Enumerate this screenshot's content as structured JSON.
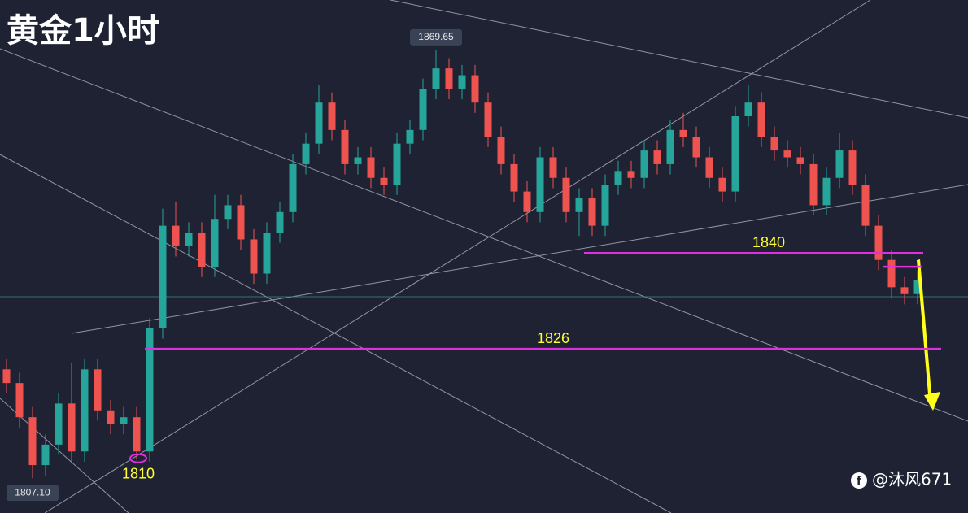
{
  "chart_data": {
    "type": "candlestick",
    "title": "黄金1小时",
    "open": [
      1823,
      1821,
      1816,
      1809,
      1812,
      1818,
      1811,
      1823,
      1817,
      1815,
      1816,
      1811,
      1829,
      1844,
      1841,
      1843,
      1838,
      1845,
      1847,
      1842,
      1837,
      1843,
      1846,
      1853,
      1856,
      1862,
      1858,
      1853,
      1854,
      1851,
      1850,
      1856,
      1858,
      1864,
      1867,
      1864,
      1866,
      1862,
      1857,
      1853,
      1849,
      1846,
      1854,
      1851,
      1846,
      1848,
      1844,
      1850,
      1852,
      1851,
      1855,
      1853,
      1858,
      1857,
      1854,
      1851,
      1849,
      1860,
      1862,
      1857,
      1855,
      1854,
      1853,
      1847,
      1851,
      1855,
      1850,
      1844,
      1839,
      1835,
      1834
    ],
    "high": [
      1824.5,
      1822.5,
      1817.5,
      1813.5,
      1819.5,
      1824,
      1824.5,
      1824.5,
      1818.5,
      1817.5,
      1817.5,
      1830.5,
      1846.5,
      1847.5,
      1844.5,
      1844.5,
      1848.5,
      1848.5,
      1848.5,
      1843.5,
      1844.5,
      1847.5,
      1854.5,
      1857.5,
      1864.5,
      1863.5,
      1859.5,
      1855.5,
      1855.5,
      1852.5,
      1857.5,
      1859.5,
      1865.5,
      1869.65,
      1868.5,
      1867.5,
      1867.5,
      1863.5,
      1858.5,
      1854.5,
      1850.5,
      1855.5,
      1855.5,
      1852.5,
      1849.5,
      1849.5,
      1851.5,
      1853.5,
      1853.5,
      1856.5,
      1856.5,
      1859.5,
      1860.5,
      1858.5,
      1855.5,
      1852.5,
      1861.5,
      1864.5,
      1863.5,
      1858.5,
      1856.5,
      1855.5,
      1854.5,
      1852.5,
      1857.5,
      1856.5,
      1851.5,
      1845.5,
      1840.5,
      1836.5,
      1837.5
    ],
    "low": [
      1819.5,
      1814.5,
      1807.1,
      1807.5,
      1810.5,
      1809.5,
      1809.5,
      1815.5,
      1813.5,
      1813.5,
      1809.8,
      1809.5,
      1827.5,
      1839.5,
      1839.5,
      1836.5,
      1836.5,
      1843.5,
      1840.5,
      1835.5,
      1835.5,
      1841.5,
      1844.5,
      1851.5,
      1854.5,
      1856.5,
      1851.5,
      1851.5,
      1849.5,
      1848.5,
      1848.5,
      1854.5,
      1856.5,
      1862.5,
      1862.5,
      1862.5,
      1860.5,
      1855.5,
      1851.5,
      1847.5,
      1844.5,
      1844.5,
      1849.5,
      1844.5,
      1842.5,
      1842.5,
      1842.5,
      1848.5,
      1849.5,
      1849.5,
      1851.5,
      1851.5,
      1855.5,
      1852.5,
      1849.5,
      1847.5,
      1847.5,
      1858.5,
      1855.5,
      1853.5,
      1852.5,
      1851.5,
      1845.5,
      1845.5,
      1849.5,
      1848.5,
      1842.5,
      1837.5,
      1833.5,
      1832.5,
      1832.5
    ],
    "close": [
      1821,
      1816,
      1809,
      1812,
      1818,
      1811,
      1823,
      1817,
      1815,
      1816,
      1811,
      1829,
      1844,
      1841,
      1843,
      1838,
      1845,
      1847,
      1842,
      1837,
      1843,
      1846,
      1853,
      1856,
      1862,
      1858,
      1853,
      1854,
      1851,
      1850,
      1856,
      1858,
      1864,
      1867,
      1864,
      1866,
      1862,
      1857,
      1853,
      1849,
      1846,
      1854,
      1851,
      1846,
      1848,
      1844,
      1850,
      1852,
      1851,
      1855,
      1853,
      1858,
      1857,
      1854,
      1851,
      1849,
      1860,
      1862,
      1857,
      1855,
      1854,
      1853,
      1847,
      1851,
      1855,
      1850,
      1844,
      1839,
      1835,
      1834,
      1836
    ],
    "up_color": "#26a69a",
    "down_color": "#ef5350",
    "ylim": [
      1802,
      1877
    ],
    "high_label": {
      "value": 1869.65,
      "label": "1869.65"
    },
    "low_label": {
      "value": 1807.1,
      "label": "1807.10"
    },
    "levels": [
      1840,
      1826
    ],
    "level_color": "#e02ee0",
    "short_level": 1838,
    "annotation": 1810,
    "watermark": "@沐风671"
  }
}
